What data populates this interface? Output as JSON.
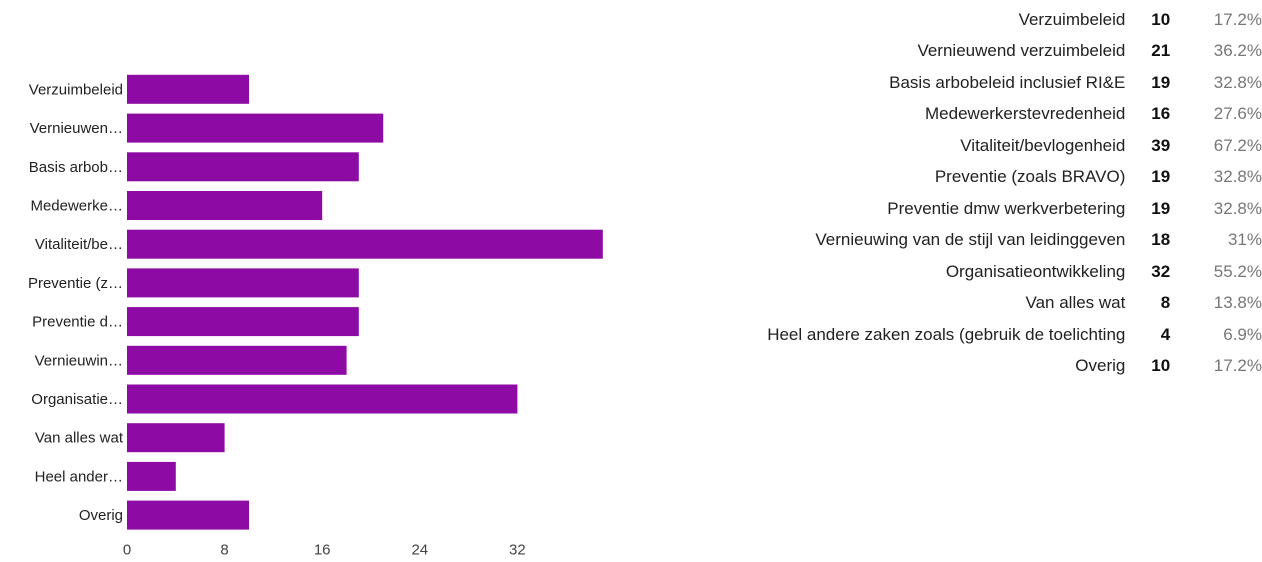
{
  "chart_data": {
    "type": "bar",
    "orientation": "horizontal",
    "categories": [
      "Verzuimbeleid",
      "Vernieuwen…",
      "Basis arbob…",
      "Medewerke…",
      "Vitaliteit/be…",
      "Preventie (z…",
      "Preventie d…",
      "Vernieuwin…",
      "Organisatie…",
      "Van alles wat",
      "Heel ander…",
      "Overig"
    ],
    "values": [
      10,
      21,
      19,
      16,
      39,
      19,
      19,
      18,
      32,
      8,
      4,
      10
    ],
    "xticks": [
      "0",
      "8",
      "16",
      "24",
      "32"
    ],
    "xlim": [
      0,
      40
    ],
    "bar_color": "#8e0aa4"
  },
  "summary": {
    "rows": [
      {
        "label": "Verzuimbeleid",
        "count": "10",
        "pct": "17.2%"
      },
      {
        "label": "Vernieuwend verzuimbeleid",
        "count": "21",
        "pct": "36.2%"
      },
      {
        "label": "Basis arbobeleid inclusief RI&E",
        "count": "19",
        "pct": "32.8%"
      },
      {
        "label": "Medewerkerstevredenheid",
        "count": "16",
        "pct": "27.6%"
      },
      {
        "label": "Vitaliteit/bevlogenheid",
        "count": "39",
        "pct": "67.2%"
      },
      {
        "label": "Preventie (zoals BRAVO)",
        "count": "19",
        "pct": "32.8%"
      },
      {
        "label": "Preventie dmw werkverbetering",
        "count": "19",
        "pct": "32.8%"
      },
      {
        "label": "Vernieuwing van de stijl van leidinggeven",
        "count": "18",
        "pct": "31%"
      },
      {
        "label": "Organisatieontwikkeling",
        "count": "32",
        "pct": "55.2%"
      },
      {
        "label": "Van alles wat",
        "count": "8",
        "pct": "13.8%"
      },
      {
        "label": "Heel andere zaken zoals (gebruik de toelichting",
        "count": "4",
        "pct": "6.9%"
      },
      {
        "label": "Overig",
        "count": "10",
        "pct": "17.2%"
      }
    ]
  }
}
